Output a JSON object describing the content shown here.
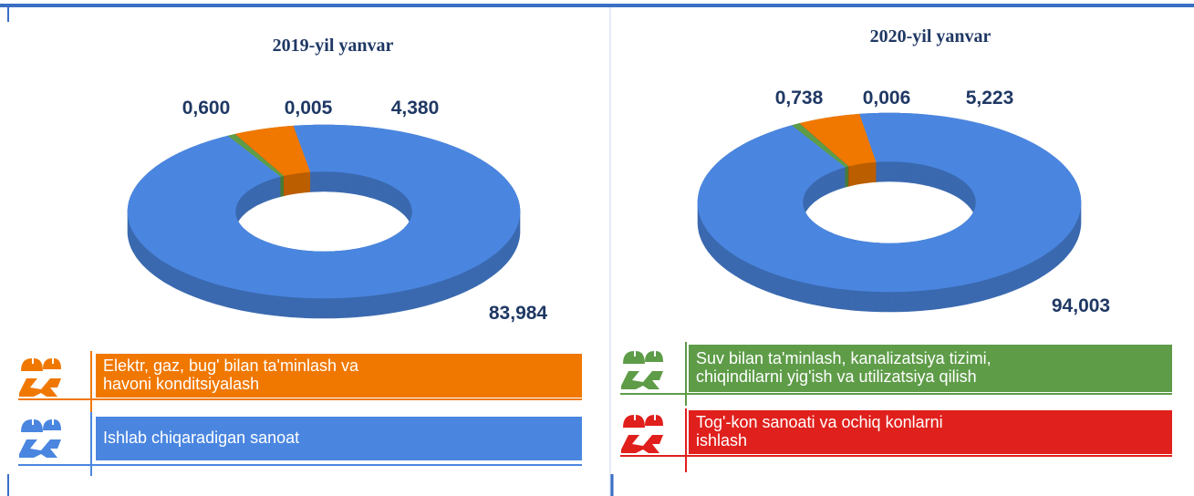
{
  "chart_data": [
    {
      "type": "pie",
      "title": "2019-yil yanvar",
      "values": [
        83.984,
        0.6,
        0.005,
        4.38
      ],
      "value_labels": [
        "83,984",
        "0,600",
        "0,005",
        "4,380"
      ]
    },
    {
      "type": "pie",
      "title": "2020-yil yanvar",
      "values": [
        94.003,
        0.738,
        0.006,
        5.223
      ],
      "value_labels": [
        "94,003",
        "0,738",
        "0,006",
        "5,223"
      ]
    }
  ],
  "legend": {
    "items": [
      {
        "name": [
          "Ishlab chiqaradigan sanoat"
        ],
        "color": "#4a86e0"
      },
      {
        "name": [
          "Suv bilan ta'minlash, kanalizatsiya tizimi,",
          "chiqindilarni yig'ish va utilizatsiya qilish"
        ],
        "color": "#5e9c48"
      },
      {
        "name": [
          "Tog'-kon sanoati va ochiq konlarni",
          "ishlash"
        ],
        "color": "#e0201c"
      },
      {
        "name": [
          " Elektr, gaz, bug' bilan ta'minlash va",
          "havoni konditsiyalash"
        ],
        "color": "#f07800"
      }
    ]
  }
}
